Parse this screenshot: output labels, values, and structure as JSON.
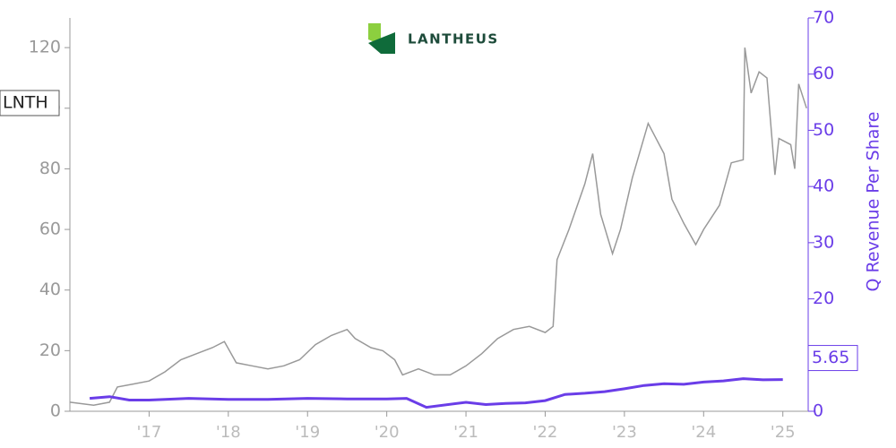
{
  "chart_data": {
    "type": "line",
    "logo_text": "LANTHEUS",
    "y2label": "Q Revenue Per Share",
    "xlim": [
      2016.0,
      2025.32
    ],
    "xticks": [
      {
        "value": 2017,
        "label": "'17"
      },
      {
        "value": 2018,
        "label": "'18"
      },
      {
        "value": 2019,
        "label": "'19"
      },
      {
        "value": 2020,
        "label": "'20"
      },
      {
        "value": 2021,
        "label": "'21"
      },
      {
        "value": 2022,
        "label": "'22"
      },
      {
        "value": 2023,
        "label": "'23"
      },
      {
        "value": 2024,
        "label": "'24"
      },
      {
        "value": 2025,
        "label": "'25"
      }
    ],
    "ylim": [
      0,
      129.8
    ],
    "yticks": [
      0,
      20,
      40,
      60,
      80,
      100,
      120
    ],
    "y2lim": [
      0,
      70
    ],
    "y2ticks": [
      0,
      10,
      20,
      30,
      40,
      50,
      60,
      70
    ],
    "series": [
      {
        "name": "LNTH",
        "color": "#999999",
        "x": [
          2016.0,
          2016.3,
          2016.5,
          2016.6,
          2016.8,
          2017.0,
          2017.2,
          2017.4,
          2017.6,
          2017.8,
          2017.95,
          2018.1,
          2018.3,
          2018.5,
          2018.7,
          2018.9,
          2019.1,
          2019.3,
          2019.5,
          2019.6,
          2019.8,
          2019.95,
          2020.1,
          2020.2,
          2020.4,
          2020.6,
          2020.8,
          2021.0,
          2021.2,
          2021.4,
          2021.6,
          2021.8,
          2022.0,
          2022.1,
          2022.15,
          2022.3,
          2022.5,
          2022.6,
          2022.7,
          2022.85,
          2022.95,
          2023.1,
          2023.3,
          2023.5,
          2023.6,
          2023.75,
          2023.9,
          2024.0,
          2024.2,
          2024.35,
          2024.5,
          2024.52,
          2024.6,
          2024.7,
          2024.8,
          2024.9,
          2024.95,
          2025.1,
          2025.15,
          2025.2,
          2025.3
        ],
        "values": [
          3,
          2,
          3,
          8,
          9,
          10,
          13,
          17,
          19,
          21,
          23,
          16,
          15,
          14,
          15,
          17,
          22,
          25,
          27,
          24,
          21,
          20,
          17,
          12,
          14,
          12,
          12,
          15,
          19,
          24,
          27,
          28,
          26,
          28,
          50,
          60,
          75,
          85,
          65,
          52,
          60,
          77,
          95,
          85,
          70,
          62,
          55,
          60,
          68,
          82,
          83,
          120,
          105,
          112,
          110,
          78,
          90,
          88,
          80,
          108,
          100
        ]
      },
      {
        "color": "#6a3de8",
        "axis": "y2",
        "x": [
          2016.25,
          2016.5,
          2016.75,
          2017.0,
          2017.5,
          2018.0,
          2018.5,
          2019.0,
          2019.5,
          2020.0,
          2020.25,
          2020.5,
          2021.0,
          2021.25,
          2021.5,
          2021.75,
          2022.0,
          2022.25,
          2022.5,
          2022.75,
          2023.0,
          2023.25,
          2023.5,
          2023.75,
          2024.0,
          2024.25,
          2024.5,
          2024.75,
          2025.0
        ],
        "values": [
          2.3,
          2.6,
          2.0,
          2.0,
          2.3,
          2.1,
          2.1,
          2.3,
          2.2,
          2.2,
          2.3,
          0.7,
          1.6,
          1.2,
          1.4,
          1.5,
          1.9,
          3.0,
          3.2,
          3.5,
          4.0,
          4.6,
          4.9,
          4.8,
          5.2,
          5.4,
          5.8,
          5.6,
          5.65
        ]
      }
    ]
  }
}
